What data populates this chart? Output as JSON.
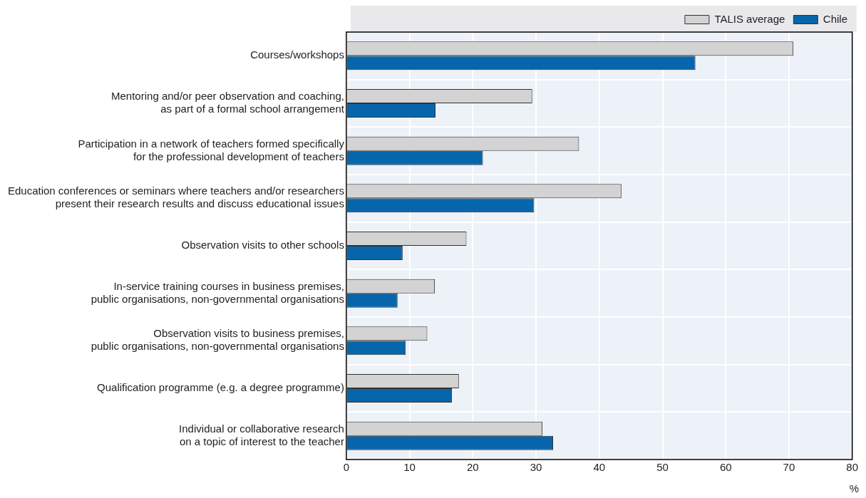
{
  "chart_data": {
    "type": "bar",
    "orientation": "horizontal",
    "categories": [
      "Courses/workshops",
      "Mentoring and/or peer observation and coaching,\nas part of a formal school arrangement",
      "Participation in a network of teachers formed specifically\nfor the professional development of teachers",
      "Education conferences or seminars where teachers and/or researchers\npresent their research results and discuss educational issues",
      "Observation visits to other schools",
      "In-service training courses in business premises,\npublic organisations, non-governmental organisations",
      "Observation visits to business premises,\npublic organisations, non-governmental organisations",
      "Qualification programme (e.g. a degree programme)",
      "Individual or collaborative research\non a topic of interest to the teacher"
    ],
    "series": [
      {
        "name": "TALIS average",
        "color": "#d3d3d3",
        "values": [
          70.7,
          29.4,
          36.8,
          43.5,
          19.0,
          14.0,
          12.8,
          17.8,
          31.0
        ]
      },
      {
        "name": "Chile",
        "color": "#0766ab",
        "values": [
          55.2,
          14.1,
          21.6,
          29.7,
          8.9,
          8.1,
          9.4,
          16.7,
          32.7
        ]
      }
    ],
    "xlim": [
      0,
      80
    ],
    "xticks": [
      0,
      10,
      20,
      30,
      40,
      50,
      60,
      70,
      80
    ],
    "xlabel": "%",
    "grid": "x",
    "legend": "top"
  }
}
